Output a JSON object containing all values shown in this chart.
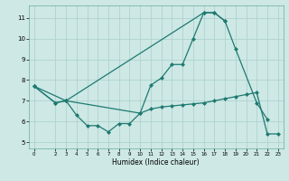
{
  "bg_color": "#cde8e5",
  "grid_color": "#aacfcc",
  "line_color": "#1e7a70",
  "xlabel": "Humidex (Indice chaleur)",
  "xlim": [
    -0.5,
    23.5
  ],
  "ylim": [
    4.7,
    11.6
  ],
  "yticks": [
    5,
    6,
    7,
    8,
    9,
    10,
    11
  ],
  "xticks": [
    0,
    2,
    3,
    4,
    5,
    6,
    7,
    8,
    9,
    10,
    11,
    12,
    13,
    14,
    15,
    16,
    17,
    18,
    19,
    20,
    21,
    22,
    23
  ],
  "line1_x": [
    0,
    2,
    3,
    16,
    17,
    18
  ],
  "line1_y": [
    7.7,
    6.9,
    7.0,
    11.25,
    11.25,
    10.85
  ],
  "line2_x": [
    0,
    3,
    10,
    11,
    12,
    13,
    14,
    15,
    16,
    17,
    18,
    19,
    21,
    22
  ],
  "line2_y": [
    7.7,
    7.0,
    6.4,
    7.75,
    8.1,
    8.75,
    8.75,
    10.0,
    11.25,
    11.25,
    10.85,
    9.5,
    6.9,
    6.1
  ],
  "line3_x": [
    0,
    2,
    3,
    4,
    5,
    6,
    7,
    8,
    9,
    10,
    11,
    12,
    13,
    14,
    15,
    16,
    17,
    18,
    19,
    20,
    21,
    22,
    23
  ],
  "line3_y": [
    7.7,
    6.9,
    7.0,
    6.3,
    5.8,
    5.8,
    5.5,
    5.9,
    5.9,
    6.4,
    6.6,
    6.7,
    6.75,
    6.8,
    6.85,
    6.9,
    7.0,
    7.1,
    7.2,
    7.3,
    7.4,
    5.4,
    5.4
  ]
}
